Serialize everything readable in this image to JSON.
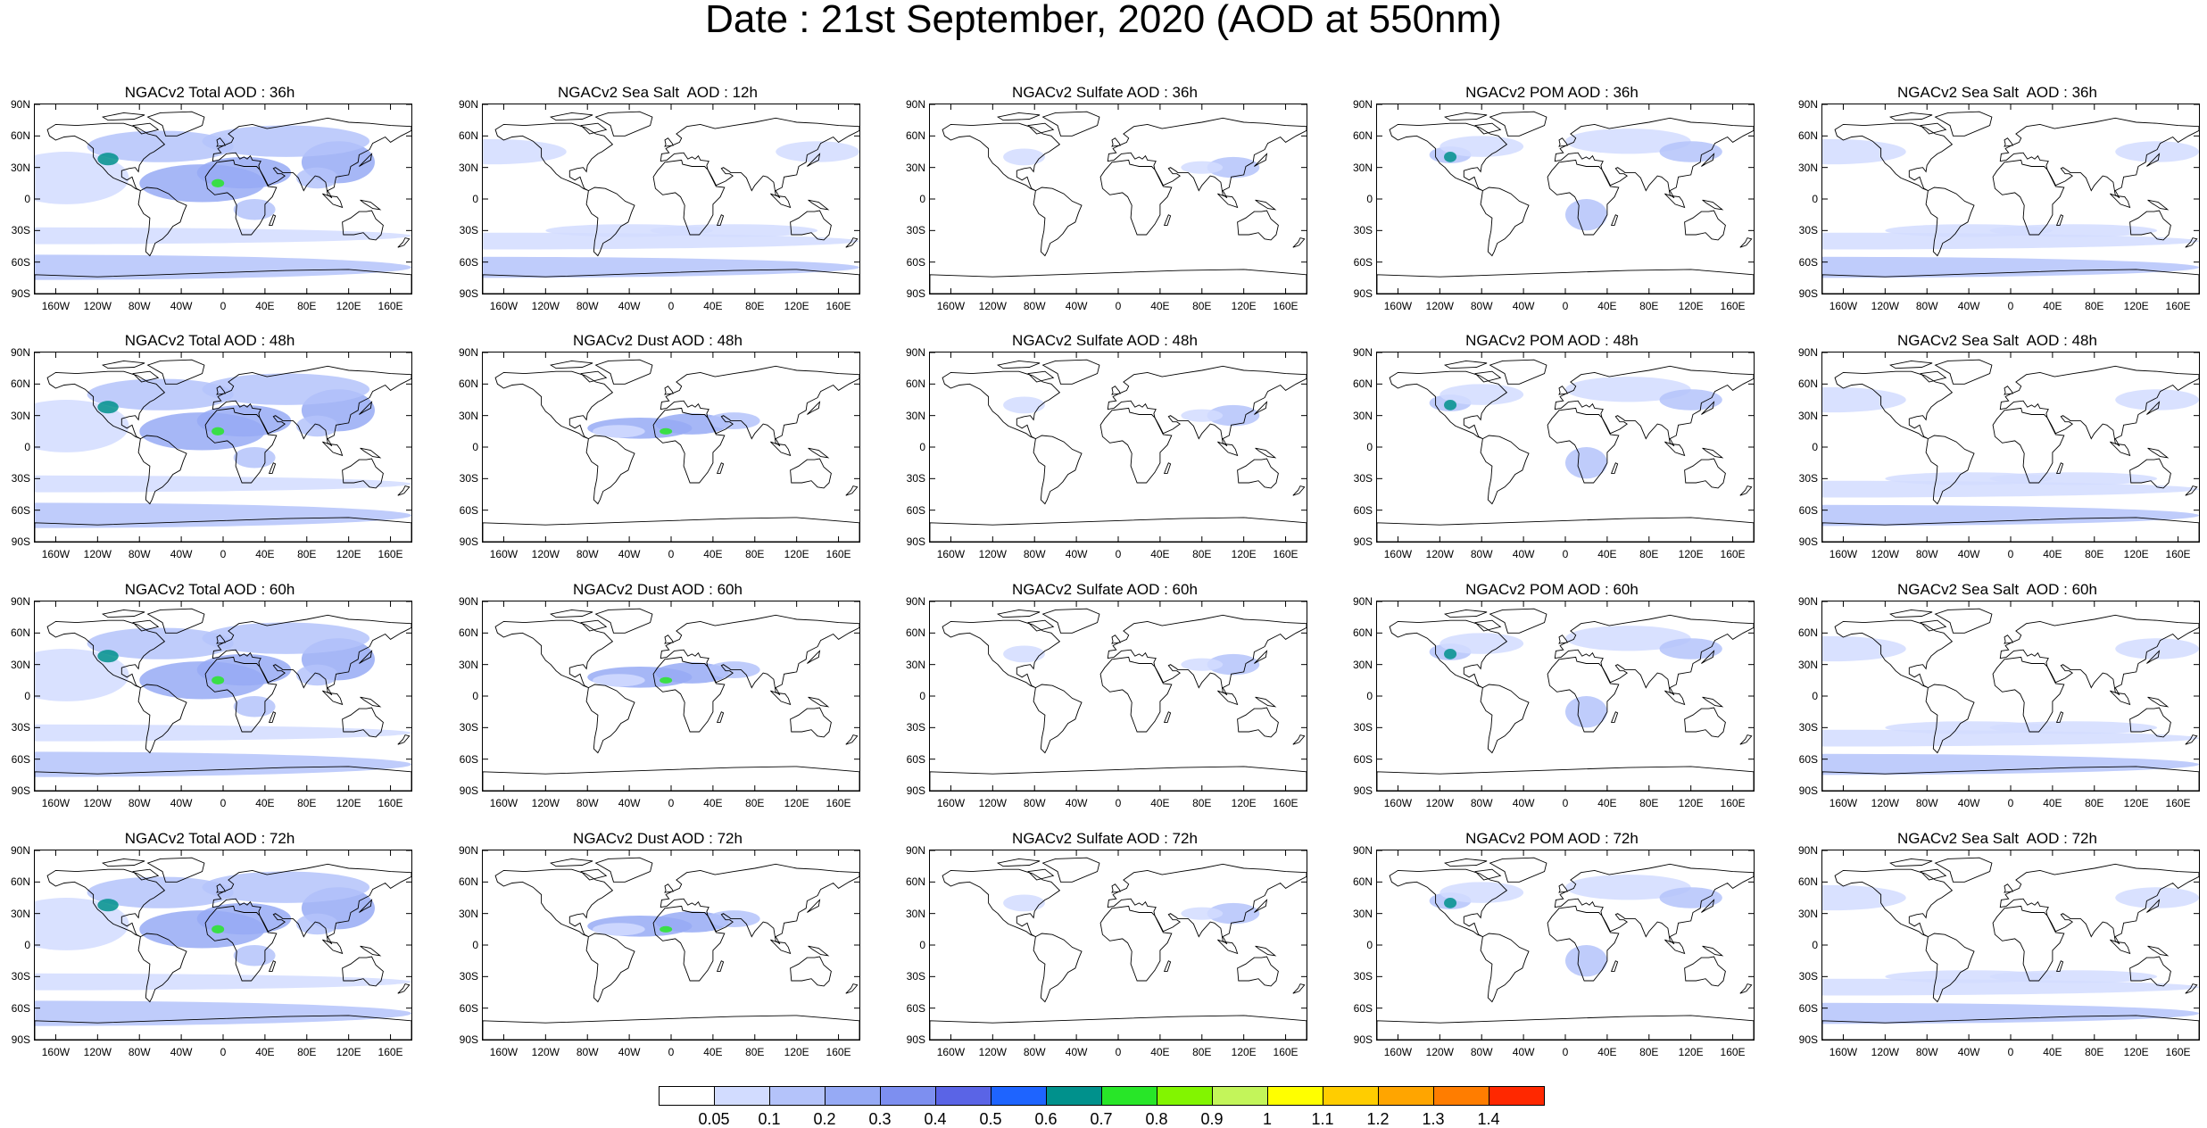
{
  "title": "Date : 21st  September, 2020 (AOD at 550nm)",
  "lat_ticks": [
    "90N",
    "60N",
    "30N",
    "0",
    "30S",
    "60S",
    "90S"
  ],
  "lon_ticks": [
    "160W",
    "120W",
    "80W",
    "40W",
    "0",
    "40E",
    "80E",
    "120E",
    "160E"
  ],
  "panels": [
    [
      "NGACv2 Total AOD : 36h",
      "NGACv2 Sea Salt  AOD : 12h",
      "NGACv2 Sulfate AOD : 36h",
      "NGACv2 POM AOD : 36h",
      "NGACv2 Sea Salt  AOD : 36h"
    ],
    [
      "NGACv2 Total AOD : 48h",
      "NGACv2 Dust AOD : 48h",
      "NGACv2 Sulfate AOD : 48h",
      "NGACv2 POM AOD : 48h",
      "NGACv2 Sea Salt  AOD : 48h"
    ],
    [
      "NGACv2 Total AOD : 60h",
      "NGACv2 Dust AOD : 60h",
      "NGACv2 Sulfate AOD : 60h",
      "NGACv2 POM AOD : 60h",
      "NGACv2 Sea Salt  AOD : 60h"
    ],
    [
      "NGACv2 Total AOD : 72h",
      "NGACv2 Dust AOD : 72h",
      "NGACv2 Sulfate AOD : 72h",
      "NGACv2 POM AOD : 72h",
      "NGACv2 Sea Salt  AOD : 72h"
    ]
  ],
  "colorbar": {
    "labels": [
      "0.05",
      "0.1",
      "0.2",
      "0.3",
      "0.4",
      "0.5",
      "0.6",
      "0.7",
      "0.8",
      "0.9",
      "1",
      "1.1",
      "1.2",
      "1.3",
      "1.4"
    ],
    "colors": [
      "#ffffff",
      "#d2dcff",
      "#b4c3fa",
      "#96aaf5",
      "#7d8ff0",
      "#5a64e6",
      "#1e64ff",
      "#00918c",
      "#28e628",
      "#82f500",
      "#c3f55a",
      "#ffff00",
      "#ffcd00",
      "#ffa500",
      "#ff7d00",
      "#ff2800"
    ]
  }
}
